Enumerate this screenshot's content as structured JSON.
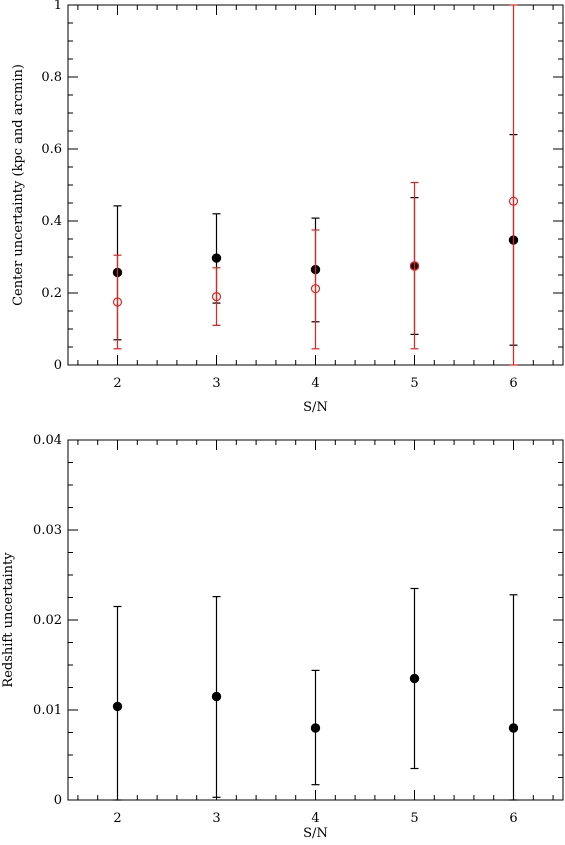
{
  "chart_data": [
    {
      "type": "scatter",
      "xlabel": "S/N",
      "ylabel": "Center uncertainty (kpc and arcmin)",
      "xlim": [
        1.5,
        6.5
      ],
      "ylim": [
        0,
        1
      ],
      "xticks": [
        "2",
        "3",
        "4",
        "5",
        "6"
      ],
      "yticks": [
        "0",
        "0.2",
        "0.4",
        "0.6",
        "0.8",
        "1"
      ],
      "series": [
        {
          "color": "#000000",
          "marker": "filled-circle",
          "points": [
            {
              "x": 2,
              "y": 0.257,
              "low": 0.07,
              "high": 0.442
            },
            {
              "x": 3,
              "y": 0.297,
              "low": 0.172,
              "high": 0.42
            },
            {
              "x": 4,
              "y": 0.265,
              "low": 0.12,
              "high": 0.408
            },
            {
              "x": 5,
              "y": 0.275,
              "low": 0.085,
              "high": 0.465
            },
            {
              "x": 6,
              "y": 0.347,
              "low": 0.055,
              "high": 0.64
            }
          ]
        },
        {
          "color": "#e8201e",
          "marker": "open-circle",
          "points": [
            {
              "x": 2,
              "y": 0.175,
              "low": 0.045,
              "high": 0.305
            },
            {
              "x": 3,
              "y": 0.19,
              "low": 0.11,
              "high": 0.27
            },
            {
              "x": 4,
              "y": 0.212,
              "low": 0.045,
              "high": 0.375
            },
            {
              "x": 5,
              "y": 0.275,
              "low": 0.045,
              "high": 0.507
            },
            {
              "x": 6,
              "y": 0.455,
              "low": 0,
              "high": 1
            }
          ]
        }
      ]
    },
    {
      "type": "scatter",
      "xlabel": "S/N",
      "ylabel": "Redshift uncertainty",
      "xlim": [
        1.5,
        6.5
      ],
      "ylim": [
        0,
        0.04
      ],
      "xticks": [
        "2",
        "3",
        "4",
        "5",
        "6"
      ],
      "yticks": [
        "0",
        "0.01",
        "0.02",
        "0.03",
        "0.04"
      ],
      "series": [
        {
          "color": "#000000",
          "marker": "filled-circle",
          "points": [
            {
              "x": 2,
              "y": 0.0104,
              "low": 0,
              "high": 0.0215
            },
            {
              "x": 3,
              "y": 0.0115,
              "low": 0.0003,
              "high": 0.0226
            },
            {
              "x": 4,
              "y": 0.008,
              "low": 0.0017,
              "high": 0.0144
            },
            {
              "x": 5,
              "y": 0.0135,
              "low": 0.0035,
              "high": 0.0235
            },
            {
              "x": 6,
              "y": 0.008,
              "low": 0,
              "high": 0.0228
            }
          ]
        }
      ]
    }
  ]
}
